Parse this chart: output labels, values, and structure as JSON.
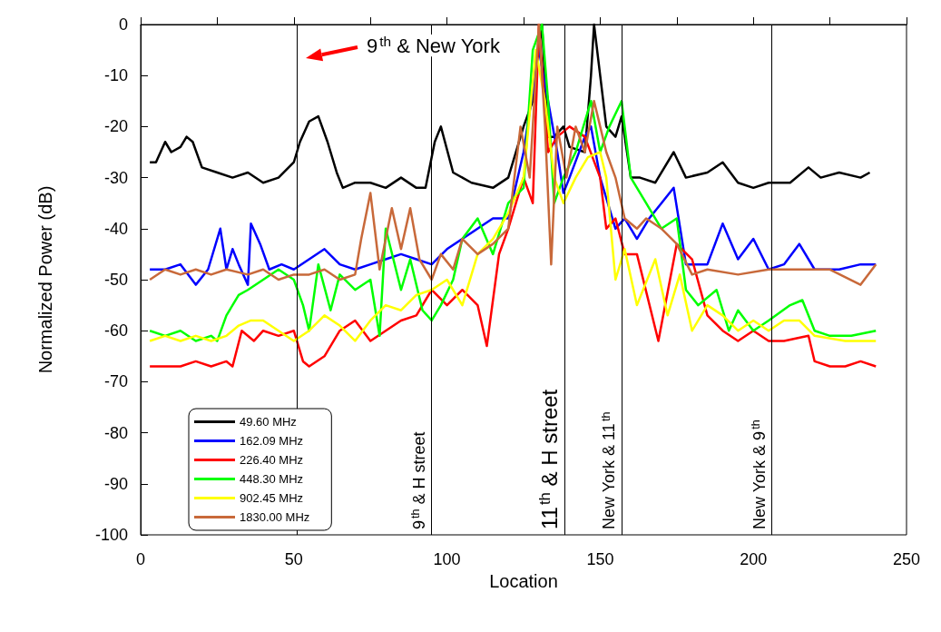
{
  "chart_data": {
    "type": "line",
    "xlabel": "Location",
    "ylabel": "Normalized Power (dB)",
    "xlim": [
      0,
      250
    ],
    "xticks": [
      0,
      50,
      100,
      150,
      200,
      250
    ],
    "ylim": [
      -100,
      0
    ],
    "yticks": [
      -100,
      -90,
      -80,
      -70,
      -60,
      -50,
      -40,
      -30,
      -20,
      -10,
      0
    ],
    "grid": false,
    "legend": "bottom left",
    "marker": "none",
    "line_style": "solid",
    "series": [
      {
        "name": "49.60 MHz",
        "color": "#000000",
        "x": [
          3,
          5,
          8,
          10,
          13,
          15,
          17,
          20,
          25,
          30,
          35,
          40,
          45,
          50,
          52,
          55,
          58,
          61,
          64,
          66,
          70,
          75,
          80,
          85,
          90,
          93,
          96,
          98,
          102,
          108,
          115,
          120,
          125,
          128,
          131,
          133,
          135,
          138,
          140,
          145,
          147,
          148,
          150,
          152,
          155,
          157,
          160,
          163,
          168,
          174,
          178,
          185,
          190,
          195,
          200,
          205,
          212,
          218,
          222,
          228,
          235,
          238
        ],
        "values": [
          -27,
          -27,
          -23,
          -25,
          -24,
          -22,
          -23,
          -28,
          -29,
          -30,
          -29,
          -31,
          -30,
          -27,
          -23,
          -19,
          -18,
          -23,
          -29,
          -32,
          -31,
          -31,
          -32,
          -30,
          -32,
          -32,
          -23,
          -20,
          -29,
          -31,
          -32,
          -30,
          -20,
          -15,
          0,
          -22,
          -22,
          -20,
          -24,
          -25,
          -10,
          0,
          -10,
          -20,
          -22,
          -18,
          -30,
          -30,
          -31,
          -25,
          -30,
          -29,
          -27,
          -31,
          -32,
          -31,
          -31,
          -28,
          -30,
          -29,
          -30,
          -29
        ]
      },
      {
        "name": "162.09 MHz",
        "color": "#0000ff",
        "x": [
          3,
          8,
          13,
          18,
          22,
          26,
          28,
          30,
          32,
          35,
          36,
          39,
          42,
          46,
          50,
          55,
          60,
          65,
          70,
          75,
          80,
          85,
          90,
          95,
          100,
          105,
          110,
          115,
          120,
          125,
          130,
          133,
          136,
          138,
          140,
          145,
          147,
          150,
          155,
          158,
          162,
          166,
          170,
          174,
          178,
          185,
          190,
          195,
          200,
          205,
          210,
          215,
          220,
          228,
          235,
          240
        ],
        "values": [
          -48,
          -48,
          -47,
          -51,
          -48,
          -40,
          -48,
          -44,
          -47,
          -51,
          -39,
          -43,
          -48,
          -47,
          -48,
          -46,
          -44,
          -47,
          -48,
          -47,
          -46,
          -45,
          -46,
          -47,
          -44,
          -42,
          -40,
          -38,
          -38,
          -25,
          -5,
          -15,
          -25,
          -33,
          -30,
          -22,
          -20,
          -30,
          -40,
          -38,
          -42,
          -38,
          -35,
          -32,
          -47,
          -47,
          -39,
          -46,
          -42,
          -48,
          -47,
          -43,
          -48,
          -48,
          -47,
          -47
        ]
      },
      {
        "name": "226.40 MHz",
        "color": "#ff0000",
        "x": [
          3,
          8,
          13,
          18,
          23,
          28,
          30,
          33,
          37,
          40,
          45,
          50,
          53,
          55,
          60,
          65,
          70,
          75,
          80,
          85,
          90,
          95,
          100,
          105,
          110,
          113,
          117,
          120,
          125,
          128,
          130,
          133,
          136,
          140,
          145,
          150,
          152,
          155,
          158,
          162,
          169,
          175,
          180,
          185,
          190,
          195,
          200,
          205,
          210,
          218,
          220,
          225,
          230,
          235,
          240
        ],
        "values": [
          -67,
          -67,
          -67,
          -66,
          -67,
          -66,
          -67,
          -60,
          -62,
          -60,
          -61,
          -60,
          -66,
          -67,
          -65,
          -60,
          -58,
          -62,
          -60,
          -58,
          -57,
          -52,
          -55,
          -52,
          -55,
          -63,
          -45,
          -40,
          -30,
          -35,
          0,
          -25,
          -22,
          -20,
          -22,
          -30,
          -40,
          -38,
          -45,
          -45,
          -62,
          -43,
          -46,
          -57,
          -60,
          -62,
          -60,
          -62,
          -62,
          -61,
          -66,
          -67,
          -67,
          -66,
          -67
        ]
      },
      {
        "name": "448.30 MHz",
        "color": "#00ff00",
        "x": [
          3,
          8,
          13,
          18,
          23,
          25,
          28,
          32,
          35,
          40,
          45,
          50,
          53,
          55,
          58,
          62,
          65,
          70,
          75,
          78,
          80,
          85,
          88,
          92,
          95,
          98,
          102,
          105,
          110,
          115,
          120,
          125,
          128,
          131,
          133,
          135,
          138,
          142,
          147,
          150,
          153,
          157,
          160,
          165,
          170,
          175,
          178,
          182,
          188,
          192,
          195,
          200,
          205,
          212,
          216,
          220,
          225,
          232,
          240
        ],
        "values": [
          -60,
          -61,
          -60,
          -62,
          -61,
          -62,
          -57,
          -53,
          -52,
          -50,
          -48,
          -50,
          -55,
          -60,
          -47,
          -56,
          -49,
          -52,
          -50,
          -61,
          -40,
          -52,
          -46,
          -56,
          -58,
          -55,
          -50,
          -42,
          -38,
          -45,
          -35,
          -32,
          -5,
          0,
          -15,
          -35,
          -30,
          -25,
          -15,
          -25,
          -20,
          -15,
          -30,
          -35,
          -40,
          -38,
          -52,
          -55,
          -52,
          -60,
          -56,
          -60,
          -58,
          -55,
          -54,
          -60,
          -61,
          -61,
          -60
        ]
      },
      {
        "name": "902.45 MHz",
        "color": "#ffff00",
        "x": [
          3,
          8,
          13,
          18,
          23,
          28,
          32,
          36,
          40,
          45,
          50,
          55,
          60,
          65,
          70,
          75,
          80,
          85,
          90,
          95,
          100,
          105,
          110,
          115,
          120,
          125,
          129,
          132,
          135,
          138,
          142,
          146,
          150,
          152,
          155,
          158,
          162,
          168,
          172,
          176,
          180,
          185,
          190,
          195,
          200,
          205,
          210,
          215,
          220,
          230,
          240
        ],
        "values": [
          -62,
          -61,
          -62,
          -61,
          -62,
          -61,
          -59,
          -58,
          -58,
          -60,
          -62,
          -60,
          -57,
          -59,
          -62,
          -58,
          -55,
          -56,
          -53,
          -52,
          -50,
          -55,
          -45,
          -42,
          -37,
          -30,
          -5,
          -15,
          -30,
          -35,
          -30,
          -26,
          -25,
          -30,
          -50,
          -44,
          -55,
          -46,
          -57,
          -49,
          -60,
          -55,
          -57,
          -60,
          -58,
          -60,
          -58,
          -58,
          -61,
          -62,
          -62
        ]
      },
      {
        "name": "1830.00 MHz",
        "color": "#c8693a",
        "x": [
          3,
          8,
          13,
          18,
          23,
          28,
          35,
          40,
          45,
          50,
          55,
          60,
          65,
          70,
          72,
          75,
          78,
          82,
          85,
          88,
          91,
          95,
          98,
          102,
          105,
          110,
          115,
          120,
          124,
          127,
          130,
          132,
          134,
          136,
          139,
          142,
          145,
          148,
          150,
          152,
          155,
          158,
          162,
          165,
          170,
          175,
          180,
          185,
          195,
          205,
          215,
          225,
          235,
          240
        ],
        "values": [
          -50,
          -48,
          -49,
          -48,
          -49,
          -48,
          -49,
          -48,
          -50,
          -49,
          -49,
          -48,
          -50,
          -49,
          -42,
          -33,
          -48,
          -36,
          -44,
          -36,
          -46,
          -50,
          -45,
          -48,
          -42,
          -45,
          -43,
          -40,
          -20,
          -30,
          0,
          -20,
          -47,
          -20,
          -30,
          -20,
          -25,
          -15,
          -20,
          -25,
          -30,
          -38,
          -40,
          -38,
          -40,
          -43,
          -49,
          -48,
          -49,
          -48,
          -48,
          -48,
          -51,
          -47
        ]
      }
    ],
    "ref_lines": [
      {
        "axis": "x",
        "value": 51,
        "color": "#000000"
      },
      {
        "axis": "x",
        "value": 95,
        "label": "9$^{th}$ & H street",
        "color": "#000000"
      },
      {
        "axis": "x",
        "value": 138.5,
        "label": "11$^{th}$ & H street",
        "color": "#000000"
      },
      {
        "axis": "x",
        "value": 157,
        "label": "New York & 11$^{th}$",
        "color": "#000000"
      },
      {
        "axis": "x",
        "value": 206,
        "label": "New York & 9$^{th}$",
        "color": "#000000"
      }
    ],
    "annotations": [
      "9$^{th}$ & New York"
    ]
  }
}
